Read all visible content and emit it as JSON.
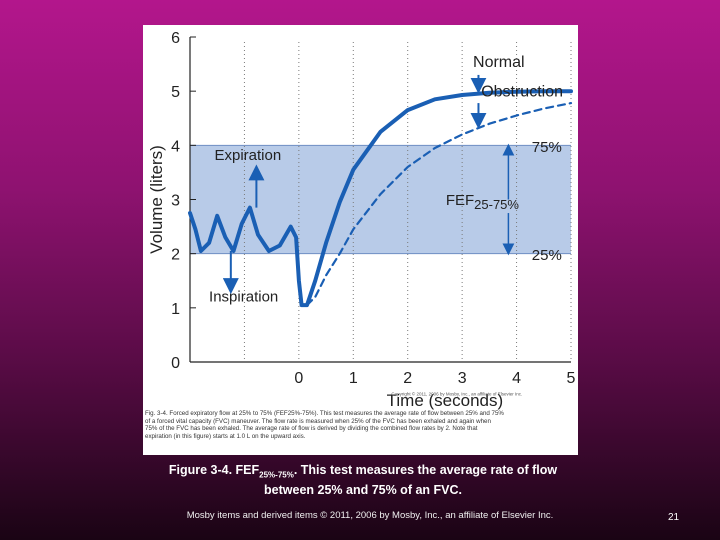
{
  "chart_data": {
    "type": "line",
    "xlabel": "Time (seconds)",
    "ylabel": "Volume (liters)",
    "xlim": [
      -2,
      5
    ],
    "ylim": [
      0,
      6
    ],
    "x_ticks": [
      "0",
      "1",
      "2",
      "3",
      "4",
      "5"
    ],
    "y_ticks": [
      "0",
      "1",
      "2",
      "3",
      "4",
      "5",
      "6"
    ],
    "band": {
      "from": 2,
      "to": 4,
      "color": "#b8cbe8"
    },
    "series": [
      {
        "name": "Normal",
        "style": "solid",
        "color": "#1a5fb4",
        "points": [
          [
            -2,
            2.75
          ],
          [
            -1.9,
            2.45
          ],
          [
            -1.8,
            2.05
          ],
          [
            -1.65,
            2.2
          ],
          [
            -1.5,
            2.7
          ],
          [
            -1.35,
            2.3
          ],
          [
            -1.2,
            2.05
          ],
          [
            -1.05,
            2.55
          ],
          [
            -0.9,
            2.85
          ],
          [
            -0.75,
            2.35
          ],
          [
            -0.55,
            2.05
          ],
          [
            -0.35,
            2.15
          ],
          [
            -0.15,
            2.5
          ],
          [
            -0.05,
            2.3
          ],
          [
            0,
            1.5
          ],
          [
            0.05,
            1.05
          ],
          [
            0.15,
            1.05
          ],
          [
            0.3,
            1.5
          ],
          [
            0.5,
            2.2
          ],
          [
            0.75,
            2.95
          ],
          [
            1,
            3.55
          ],
          [
            1.5,
            4.25
          ],
          [
            2,
            4.65
          ],
          [
            2.5,
            4.85
          ],
          [
            3,
            4.93
          ],
          [
            3.5,
            4.97
          ],
          [
            4,
            4.99
          ],
          [
            4.5,
            5.0
          ],
          [
            5,
            5.0
          ]
        ]
      },
      {
        "name": "Obstruction",
        "style": "dashed",
        "color": "#1a5fb4",
        "points": [
          [
            0.15,
            1.05
          ],
          [
            0.3,
            1.2
          ],
          [
            0.5,
            1.6
          ],
          [
            0.75,
            2.0
          ],
          [
            1,
            2.45
          ],
          [
            1.5,
            3.1
          ],
          [
            2,
            3.6
          ],
          [
            2.5,
            3.95
          ],
          [
            3,
            4.2
          ],
          [
            3.5,
            4.4
          ],
          [
            4,
            4.55
          ],
          [
            4.5,
            4.68
          ],
          [
            5,
            4.78
          ]
        ]
      }
    ],
    "annotations": {
      "normal": "Normal",
      "obstruction": "Obstruction",
      "expiration": "Expiration",
      "inspiration": "Inspiration",
      "pct75": "75%",
      "pct25": "25%",
      "fef_main": "FEF",
      "fef_sub": "25-75%"
    }
  },
  "figure_note": {
    "lines": [
      "Fig. 3-4. Forced expiratory flow at 25% to 75% (FEF25%-75%). This test measures the average rate of flow between 25% and 75%",
      "of a forced vital capacity (FVC) maneuver. The flow rate is measured when 25% of the FVC has been exhaled and again when",
      "75% of the FVC has been exhaled. The average rate of flow is derived by dividing the combined flow rates by 2. Note that",
      "expiration (in this figure) starts at 1.0 L on the upward axis."
    ],
    "copyright": "Copyright © 2011, 2006 by Mosby, Inc., an affiliate of Elsevier Inc."
  },
  "slide": {
    "caption_prefix": "Figure 3-4. FEF",
    "caption_sub": "25%-75%",
    "caption_rest": ". This test measures the average rate of flow",
    "caption_line2": "between 25% and 75% of an FVC.",
    "copyright": "Mosby items and derived items © 2011, 2006 by Mosby, Inc., an affiliate of Elsevier Inc.",
    "page_number": "21"
  }
}
